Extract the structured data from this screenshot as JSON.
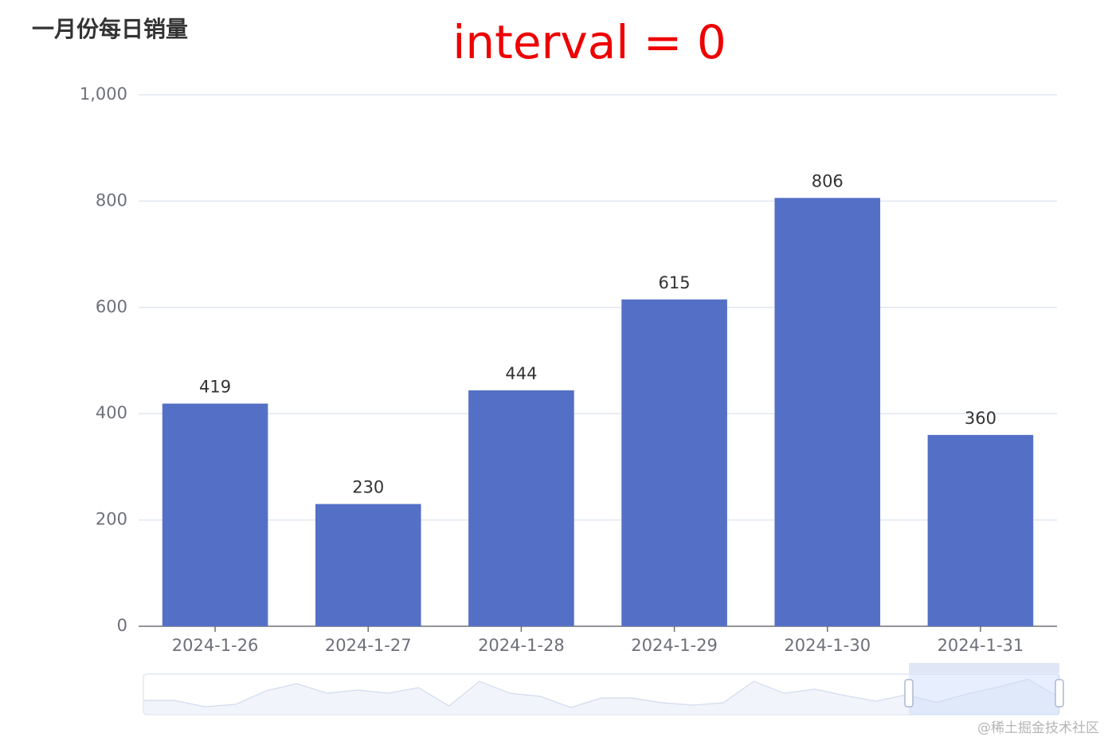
{
  "chart_data": {
    "type": "bar",
    "title": "一月份每日销量",
    "annotation": "interval = 0",
    "categories": [
      "2024-1-26",
      "2024-1-27",
      "2024-1-28",
      "2024-1-29",
      "2024-1-30",
      "2024-1-31"
    ],
    "values": [
      419,
      230,
      444,
      615,
      806,
      360
    ],
    "color": "#5470c6",
    "ylim": [
      0,
      1000
    ],
    "yticks": [
      0,
      200,
      400,
      600,
      800,
      {
        "value": 1000,
        "label": "1,000"
      }
    ],
    "grid": true,
    "zoom_overview_values": [
      280,
      280,
      120,
      180,
      520,
      700,
      460,
      540,
      460,
      600,
      140,
      760,
      460,
      380,
      100,
      340,
      340,
      220,
      160,
      220,
      760,
      460,
      560,
      400,
      260
    ],
    "watermark": "@稀土掘金技术社区"
  }
}
